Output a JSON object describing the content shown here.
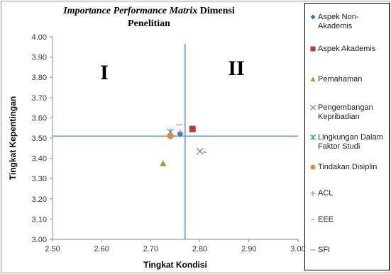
{
  "chart_data": {
    "type": "scatter",
    "title": [
      "Importance Performance Matrix",
      "Dimensi",
      "Penelitian"
    ],
    "xlabel": "Tingkat Kondisi",
    "ylabel": "Tingkat Kepentingan",
    "xlim": [
      2.5,
      3.0
    ],
    "ylim": [
      3.0,
      4.0
    ],
    "x_ticks": [
      "2.50",
      "2.60",
      "2.70",
      "2.80",
      "2.90",
      "3.00"
    ],
    "y_ticks": [
      "3.00",
      "3.10",
      "3.20",
      "3.30",
      "3.40",
      "3.50",
      "3.60",
      "3.70",
      "3.80",
      "3.90",
      "4.00"
    ],
    "quadrant_lines": {
      "x": 2.77,
      "y": 3.51
    },
    "quadrant_labels": [
      "I",
      "II"
    ],
    "grid": false,
    "legend_position": "right",
    "series": [
      {
        "name": "Aspek Non-Akademis",
        "marker": "diamond",
        "color": "#3a6fb0",
        "x": 2.76,
        "y": 3.52
      },
      {
        "name": "Aspek Akademis",
        "marker": "square",
        "color": "#b43a3a",
        "x": 2.785,
        "y": 3.545
      },
      {
        "name": "Pemahaman",
        "marker": "triangle",
        "color": "#8aa73a",
        "x": 2.725,
        "y": 3.375
      },
      {
        "name": "Pengembangan Kepribadian",
        "marker": "x",
        "color": "#8a80b8",
        "x": 2.8,
        "y": 3.435
      },
      {
        "name": "Lingkungan Dalam Faktor Studi",
        "marker": "star",
        "color": "#3aa0b8",
        "x": 2.74,
        "y": 3.53
      },
      {
        "name": "Tindakan Disiplin",
        "marker": "circle",
        "color": "#e08a3a",
        "x": 2.74,
        "y": 3.51
      },
      {
        "name": "ACL",
        "marker": "plus",
        "color": "#8aa0c8",
        "x": 2.76,
        "y": 3.53
      },
      {
        "name": "EEE",
        "marker": "dash",
        "color": "#d08080",
        "x": 2.81,
        "y": 3.43
      },
      {
        "name": "SFI",
        "marker": "longdash",
        "color": "#a0b070",
        "x": 2.758,
        "y": 3.565
      }
    ]
  }
}
